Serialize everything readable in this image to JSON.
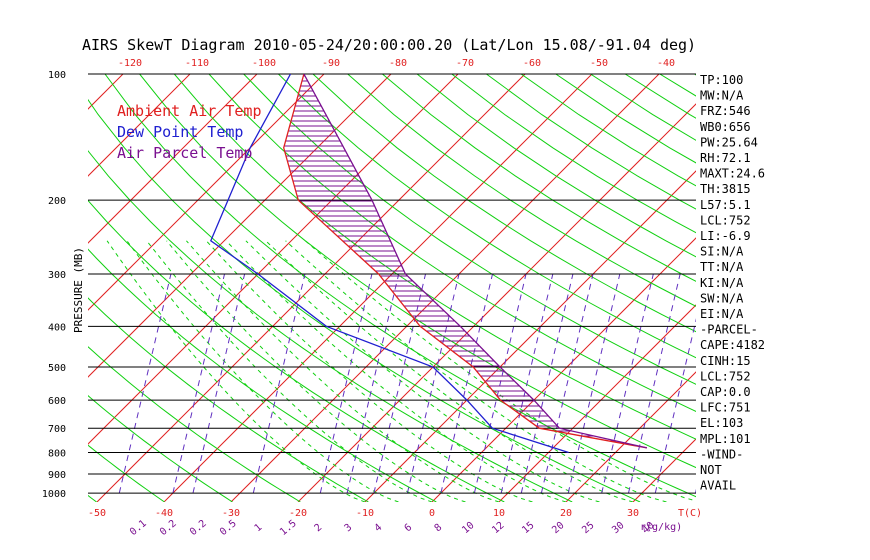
{
  "chart_data": {
    "type": "line",
    "title": "AIRS SkewT Diagram 2010-05-24/20:00:00.20 (Lat/Lon 15.08/-91.04 deg)",
    "ylabel": "PRESSURE (MB)",
    "pressure_ticks": [
      100,
      200,
      300,
      400,
      500,
      600,
      700,
      800,
      900,
      1000
    ],
    "bottom_temp_ticks": [
      -50,
      -40,
      -30,
      -20,
      -10,
      0,
      10,
      20,
      30
    ],
    "top_temp_ticks": [
      -120,
      -110,
      -100,
      -90,
      -80,
      -70,
      -60,
      -50,
      -40
    ],
    "mixing_ratio_labels": [
      "0.1",
      "0.2",
      "0.2",
      "0.5",
      "1",
      "1.5",
      "2",
      "3",
      "4",
      "6",
      "8",
      "10",
      "12",
      "15",
      "20",
      "25",
      "30",
      "40"
    ],
    "x_unit_label": "T(C)",
    "mixing_ratio_unit_label": "r(g/kg)",
    "legend": [
      {
        "name": "Ambient Air Temp",
        "color": "#e02020"
      },
      {
        "name": "Dew Point Temp",
        "color": "#2020d0"
      },
      {
        "name": "Air Parcel Temp",
        "color": "#7a1090"
      }
    ],
    "series": [
      {
        "name": "Ambient Air Temp",
        "color": "#e02020",
        "points": [
          [
            100,
            -83
          ],
          [
            150,
            -75
          ],
          [
            200,
            -65
          ],
          [
            300,
            -42
          ],
          [
            400,
            -28
          ],
          [
            500,
            -14
          ],
          [
            600,
            -5
          ],
          [
            700,
            5
          ],
          [
            780,
            24
          ]
        ]
      },
      {
        "name": "Dew Point Temp",
        "color": "#2020d0",
        "points": [
          [
            100,
            -85
          ],
          [
            150,
            -80
          ],
          [
            250,
            -72
          ],
          [
            300,
            -60
          ],
          [
            400,
            -42
          ],
          [
            500,
            -20
          ],
          [
            600,
            -10
          ],
          [
            700,
            -2
          ],
          [
            800,
            13
          ]
        ]
      },
      {
        "name": "Air Parcel Temp",
        "color": "#7a1090",
        "points": [
          [
            100,
            -83
          ],
          [
            130,
            -72
          ],
          [
            200,
            -54
          ],
          [
            300,
            -38
          ],
          [
            400,
            -22
          ],
          [
            500,
            -10
          ],
          [
            600,
            0
          ],
          [
            700,
            8
          ],
          [
            780,
            24
          ]
        ]
      }
    ],
    "indices": [
      "TP:100",
      "MW:N/A",
      "FRZ:546",
      "WB0:656",
      "PW:25.64",
      "RH:72.1",
      "MAXT:24.6",
      "TH:3815",
      "L57:5.1",
      "LCL:752",
      "LI:-6.9",
      "SI:N/A",
      "TT:N/A",
      "KI:N/A",
      "SW:N/A",
      "EI:N/A",
      "-PARCEL-",
      "CAPE:4182",
      "CINH:15",
      "LCL:752",
      "CAP:0.0",
      "LFC:751",
      "EL:103",
      "MPL:101",
      "-WIND-",
      "NOT",
      "AVAIL"
    ]
  }
}
